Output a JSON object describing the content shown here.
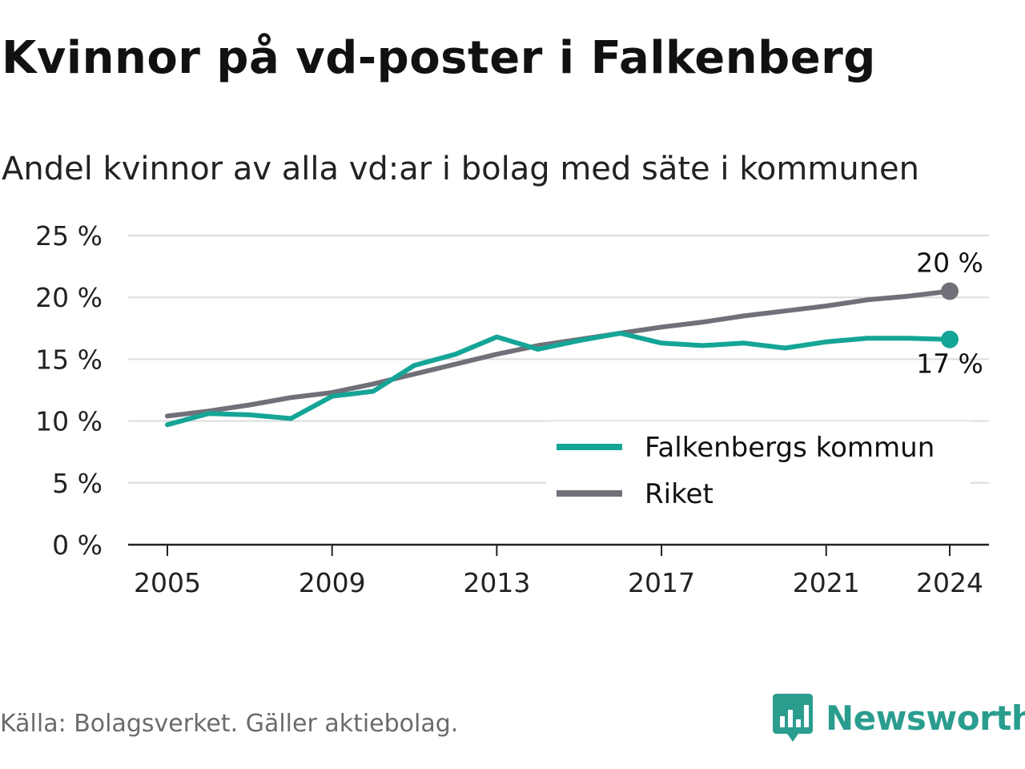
{
  "title": "Kvinnor på vd-poster i Falkenberg",
  "subtitle": "Andel kvinnor av alla vd:ar i bolag med säte i kommunen",
  "source": "Källa: Bolagsverket. Gäller aktiebolag.",
  "brand": {
    "name": "Newsworthy",
    "logo_icon": "newsworthy-chart-bubble-icon",
    "color": "#2a9d8f"
  },
  "chart_data": {
    "type": "line",
    "title": "Kvinnor på vd-poster i Falkenberg",
    "subtitle": "Andel kvinnor av alla vd:ar i bolag med säte i kommunen",
    "xlabel": "",
    "ylabel": "",
    "x": [
      2005,
      2006,
      2007,
      2008,
      2009,
      2010,
      2011,
      2012,
      2013,
      2014,
      2015,
      2016,
      2017,
      2018,
      2019,
      2020,
      2021,
      2022,
      2023,
      2024
    ],
    "x_ticks": [
      2005,
      2009,
      2013,
      2017,
      2021,
      2024
    ],
    "x_tick_labels": [
      "2005",
      "2009",
      "2013",
      "2017",
      "2021",
      "2024"
    ],
    "ylim": [
      0,
      25
    ],
    "y_ticks": [
      0,
      5,
      10,
      15,
      20,
      25
    ],
    "y_tick_labels": [
      "0 %",
      "5 %",
      "10 %",
      "15 %",
      "20 %",
      "25 %"
    ],
    "grid": true,
    "legend_position": "bottom-right",
    "series": [
      {
        "name": "Falkenbergs kommun",
        "color": "#14a596",
        "values": [
          9.7,
          10.6,
          10.5,
          10.2,
          12.0,
          12.4,
          14.5,
          15.4,
          16.8,
          15.8,
          16.5,
          17.1,
          16.3,
          16.1,
          16.3,
          15.9,
          16.4,
          16.7,
          16.7,
          16.6
        ],
        "end_label": "17 %",
        "end_label_position": "below"
      },
      {
        "name": "Riket",
        "color": "#707078",
        "values": [
          10.4,
          10.8,
          11.3,
          11.9,
          12.3,
          13.0,
          13.8,
          14.6,
          15.4,
          16.1,
          16.6,
          17.1,
          17.6,
          18.0,
          18.5,
          18.9,
          19.3,
          19.8,
          20.1,
          20.5
        ],
        "end_label": "20 %",
        "end_label_position": "above"
      }
    ]
  }
}
